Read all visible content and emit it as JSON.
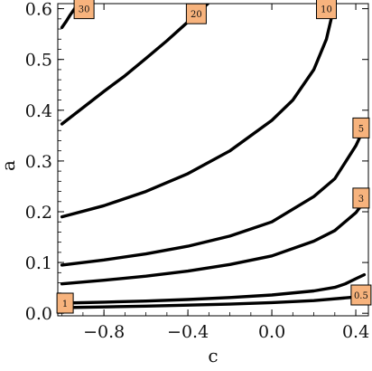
{
  "chart_data": {
    "type": "line",
    "title": "",
    "xlabel": "c",
    "ylabel": "a",
    "xlim": [
      -1.02,
      0.46
    ],
    "ylim": [
      -0.005,
      0.61
    ],
    "xticks": [
      -0.8,
      -0.4,
      0.0,
      0.4
    ],
    "xtick_labels": [
      "−0.8",
      "−0.4",
      "0.0",
      "0.4"
    ],
    "yticks": [
      0.0,
      0.1,
      0.2,
      0.3,
      0.4,
      0.5,
      0.6
    ],
    "ytick_labels": [
      "0.0",
      "0.1",
      "0.2",
      "0.3",
      "0.4",
      "0.5",
      "0.6"
    ],
    "grid": false,
    "line_color": "#000000",
    "label_fill": "#f7b37d",
    "series": [
      {
        "label": "30",
        "x": [
          -1.0,
          -0.98,
          -0.96,
          -0.94,
          -0.92,
          -0.9
        ],
        "y": [
          0.563,
          0.575,
          0.588,
          0.6,
          0.612,
          0.622
        ]
      },
      {
        "label": "20",
        "x": [
          -1.0,
          -0.9,
          -0.8,
          -0.7,
          -0.6,
          -0.5,
          -0.4,
          -0.3
        ],
        "y": [
          0.373,
          0.405,
          0.437,
          0.468,
          0.502,
          0.537,
          0.574,
          0.612
        ]
      },
      {
        "label": "10",
        "x": [
          -1.0,
          -0.8,
          -0.6,
          -0.4,
          -0.2,
          0.0,
          0.1,
          0.2,
          0.26,
          0.3
        ],
        "y": [
          0.19,
          0.212,
          0.24,
          0.275,
          0.32,
          0.38,
          0.42,
          0.48,
          0.54,
          0.61
        ]
      },
      {
        "label": "5",
        "x": [
          -1.0,
          -0.8,
          -0.6,
          -0.4,
          -0.2,
          0.0,
          0.2,
          0.3,
          0.4,
          0.44
        ],
        "y": [
          0.095,
          0.105,
          0.117,
          0.132,
          0.152,
          0.18,
          0.23,
          0.265,
          0.33,
          0.365
        ]
      },
      {
        "label": "3",
        "x": [
          -1.0,
          -0.8,
          -0.6,
          -0.4,
          -0.2,
          0.0,
          0.2,
          0.3,
          0.4,
          0.44
        ],
        "y": [
          0.058,
          0.065,
          0.073,
          0.083,
          0.096,
          0.113,
          0.142,
          0.163,
          0.198,
          0.22
        ]
      },
      {
        "label": "1",
        "x": [
          -1.0,
          -0.8,
          -0.6,
          -0.4,
          -0.2,
          0.0,
          0.2,
          0.3,
          0.35,
          0.4,
          0.44
        ],
        "y": [
          0.02,
          0.022,
          0.024,
          0.027,
          0.031,
          0.036,
          0.044,
          0.051,
          0.058,
          0.068,
          0.076
        ]
      },
      {
        "label": "0.5",
        "x": [
          -1.0,
          -0.8,
          -0.6,
          -0.4,
          -0.2,
          0.0,
          0.2,
          0.4,
          0.44
        ],
        "y": [
          0.011,
          0.0125,
          0.014,
          0.016,
          0.018,
          0.021,
          0.025,
          0.032,
          0.035
        ]
      }
    ],
    "contour_labels": [
      {
        "text": "30",
        "x": -0.895,
        "y": 0.6
      },
      {
        "text": "20",
        "x": -0.36,
        "y": 0.59
      },
      {
        "text": "10",
        "x": 0.26,
        "y": 0.6
      },
      {
        "text": "5",
        "x": 0.425,
        "y": 0.365
      },
      {
        "text": "3",
        "x": 0.425,
        "y": 0.227
      },
      {
        "text": "1",
        "x": -0.985,
        "y": 0.02
      },
      {
        "text": "0.5",
        "x": 0.425,
        "y": 0.036
      }
    ]
  }
}
